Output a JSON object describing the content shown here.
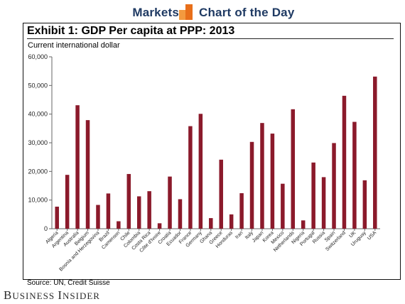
{
  "header": {
    "left_label": "Markets",
    "right_label": "Chart of the Day",
    "icon": "bar-chart-icon",
    "colors": {
      "text": "#1f3a63",
      "icon_light": "#f39a3f",
      "icon_dark": "#e86f1a"
    }
  },
  "source": "Source: UN, Credit Suisse",
  "logo": {
    "first_initial": "B",
    "first_rest": "USINESS",
    "second_initial": "I",
    "second_rest": "NSIDER"
  },
  "chart_data": {
    "type": "bar",
    "title": "Exhibit 1: GDP Per capita at PPP: 2013",
    "subtitle": "Current international dollar",
    "categories": [
      "Algeria",
      "Argentina",
      "Australia",
      "Belgium",
      "Bosnia and Herzegovina",
      "Brazil",
      "Cameroon",
      "Chile",
      "Colombia",
      "Costa Rica",
      "Côte d'Ivoire",
      "Croatia",
      "Ecuador",
      "France",
      "Germany",
      "Ghana",
      "Greece",
      "Honduras",
      "Iran",
      "Italy",
      "Japan",
      "Korea",
      "Mexico",
      "Netherlands",
      "Nigeria",
      "Portugal",
      "Russia",
      "Spain",
      "Switzerland",
      "UK",
      "Uruguay",
      "USA"
    ],
    "values": [
      7700,
      18800,
      43100,
      37900,
      8300,
      12300,
      2600,
      19100,
      11300,
      13100,
      1900,
      18200,
      10300,
      35800,
      40100,
      3700,
      24100,
      5000,
      12400,
      30300,
      36900,
      33200,
      15700,
      41700,
      2900,
      23100,
      18000,
      29900,
      46400,
      37300,
      16900,
      53100
    ],
    "ylim": [
      0,
      60000
    ],
    "yticks": [
      0,
      10000,
      20000,
      30000,
      40000,
      50000,
      60000
    ],
    "ytick_labels": [
      "0",
      "10,000",
      "20,000",
      "30,000",
      "40,000",
      "50,000",
      "60,000"
    ],
    "xlabel": "",
    "ylabel": "",
    "grid": false,
    "bar_color": "#8b1a2b"
  }
}
